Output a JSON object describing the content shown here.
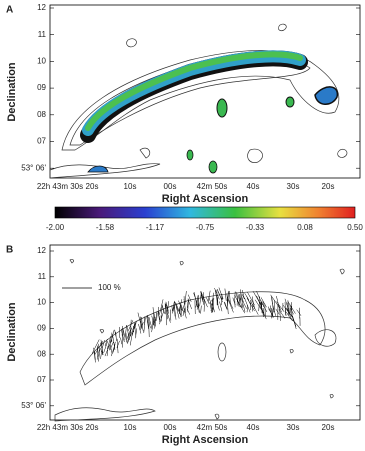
{
  "panels": [
    {
      "label": "A",
      "y_axis_label": "Declination",
      "x_axis_label": "Right Ascension",
      "y_tick_labels": [
        "12",
        "11",
        "10",
        "09",
        "08",
        "07",
        "53° 06'"
      ],
      "x_tick_labels": [
        "22h 43m 30s",
        "20s",
        "10s",
        "00s",
        "42m 50s",
        "40s",
        "30s",
        "20s"
      ]
    },
    {
      "label": "B",
      "y_axis_label": "Declination",
      "x_axis_label": "Right Ascension",
      "y_tick_labels": [
        "12",
        "11",
        "10",
        "09",
        "08",
        "07",
        "53° 06'"
      ],
      "x_tick_labels": [
        "22h 43m 30s",
        "20s",
        "10s",
        "00s",
        "42m 50s",
        "40s",
        "30s",
        "20s"
      ],
      "scale_label": "100 %"
    }
  ],
  "colorbar": {
    "tick_labels": [
      "-2.00",
      "-1.58",
      "-1.17",
      "-0.75",
      "-0.33",
      "0.08",
      "0.50"
    ]
  }
}
